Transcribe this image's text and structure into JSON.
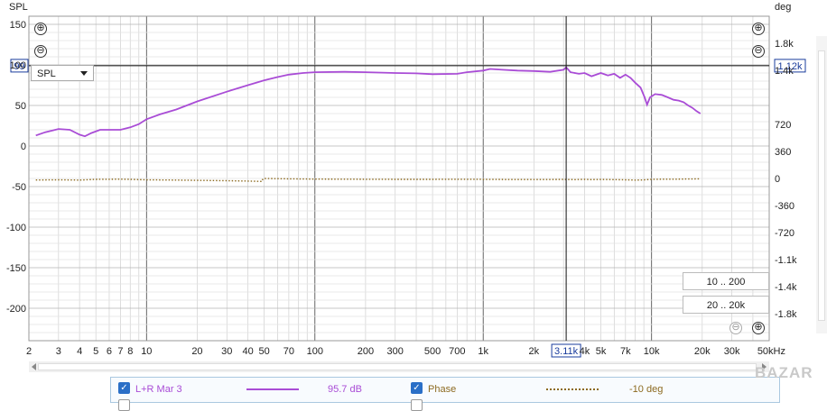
{
  "chart_data": {
    "type": "line",
    "xlabel": "",
    "ylabel": "SPL",
    "y2label": "deg",
    "x_scale": "log",
    "xlim": [
      2,
      50000
    ],
    "ylim": [
      -240,
      160
    ],
    "y2lim": [
      -2160,
      2160
    ],
    "x_ticks": [
      {
        "v": 2,
        "label": "2"
      },
      {
        "v": 3,
        "label": "3"
      },
      {
        "v": 4,
        "label": "4"
      },
      {
        "v": 5,
        "label": "5"
      },
      {
        "v": 6,
        "label": "6"
      },
      {
        "v": 7,
        "label": "7"
      },
      {
        "v": 8,
        "label": "8"
      },
      {
        "v": 10,
        "label": "10"
      },
      {
        "v": 20,
        "label": "20"
      },
      {
        "v": 30,
        "label": "30"
      },
      {
        "v": 40,
        "label": "40"
      },
      {
        "v": 50,
        "label": "50"
      },
      {
        "v": 70,
        "label": "70"
      },
      {
        "v": 100,
        "label": "100"
      },
      {
        "v": 200,
        "label": "200"
      },
      {
        "v": 300,
        "label": "300"
      },
      {
        "v": 500,
        "label": "500"
      },
      {
        "v": 700,
        "label": "700"
      },
      {
        "v": 1000,
        "label": "1k"
      },
      {
        "v": 2000,
        "label": "2k"
      },
      {
        "v": 4000,
        "label": "4k"
      },
      {
        "v": 5000,
        "label": "5k"
      },
      {
        "v": 7000,
        "label": "7k"
      },
      {
        "v": 10000,
        "label": "10k"
      },
      {
        "v": 20000,
        "label": "20k"
      },
      {
        "v": 30000,
        "label": "30k"
      },
      {
        "v": 50000,
        "label": "50kHz"
      }
    ],
    "y_ticks": [
      150,
      100,
      50,
      0,
      -50,
      -100,
      -150,
      -200
    ],
    "y2_ticks": [
      {
        "v": 1800,
        "label": "1.8k"
      },
      {
        "v": 1440,
        "label": "1.4k"
      },
      {
        "v": 720,
        "label": "720"
      },
      {
        "v": 360,
        "label": "360"
      },
      {
        "v": 0,
        "label": "0"
      },
      {
        "v": -360,
        "label": "-360"
      },
      {
        "v": -720,
        "label": "-720"
      },
      {
        "v": -1080,
        "label": "-1.1k"
      },
      {
        "v": -1440,
        "label": "-1.4k"
      },
      {
        "v": -1800,
        "label": "-1.8k"
      }
    ],
    "cursor": {
      "x": 3110,
      "x_label": "3.11k",
      "y": 99,
      "y_label": "99",
      "y2_label": "1.12k"
    },
    "grid": true,
    "series": [
      {
        "name": "L+R Mar 3",
        "axis": "left",
        "color": "#a94cd6",
        "style": "solid",
        "points": [
          [
            2.2,
            13
          ],
          [
            2.5,
            17
          ],
          [
            3,
            21
          ],
          [
            3.5,
            20
          ],
          [
            4,
            14
          ],
          [
            4.3,
            12
          ],
          [
            4.7,
            16
          ],
          [
            5.3,
            20
          ],
          [
            6,
            20
          ],
          [
            7,
            20
          ],
          [
            8,
            23
          ],
          [
            9,
            27
          ],
          [
            10,
            33
          ],
          [
            12,
            39
          ],
          [
            15,
            45
          ],
          [
            20,
            55
          ],
          [
            30,
            67
          ],
          [
            40,
            75
          ],
          [
            50,
            81
          ],
          [
            60,
            85
          ],
          [
            70,
            88
          ],
          [
            85,
            90
          ],
          [
            100,
            91
          ],
          [
            150,
            91.5
          ],
          [
            200,
            91
          ],
          [
            300,
            90
          ],
          [
            400,
            89.5
          ],
          [
            500,
            88.5
          ],
          [
            700,
            89
          ],
          [
            800,
            91
          ],
          [
            1000,
            93
          ],
          [
            1100,
            95
          ],
          [
            1300,
            94
          ],
          [
            1600,
            93
          ],
          [
            2000,
            92.5
          ],
          [
            2500,
            91.5
          ],
          [
            3000,
            94
          ],
          [
            3110,
            97
          ],
          [
            3300,
            91
          ],
          [
            3700,
            89
          ],
          [
            4000,
            90
          ],
          [
            4400,
            86
          ],
          [
            5000,
            90
          ],
          [
            5500,
            87
          ],
          [
            6000,
            89
          ],
          [
            6500,
            84
          ],
          [
            7000,
            88
          ],
          [
            7500,
            84
          ],
          [
            8000,
            78
          ],
          [
            8600,
            72
          ],
          [
            9100,
            60
          ],
          [
            9400,
            51
          ],
          [
            9800,
            60
          ],
          [
            10500,
            64
          ],
          [
            11500,
            63
          ],
          [
            12500,
            60
          ],
          [
            13500,
            57
          ],
          [
            14500,
            56
          ],
          [
            15500,
            54
          ],
          [
            16500,
            50
          ],
          [
            17500,
            47
          ],
          [
            18500,
            43
          ],
          [
            19500,
            40
          ]
        ]
      },
      {
        "name": "Phase",
        "axis": "right",
        "color": "#8c6a20",
        "style": "dotted",
        "value": "-10 deg",
        "points": [
          [
            2.2,
            -20
          ],
          [
            3,
            -18
          ],
          [
            4,
            -22
          ],
          [
            5,
            -12
          ],
          [
            6,
            -11
          ],
          [
            7,
            -10
          ],
          [
            8,
            -12
          ],
          [
            9,
            -15
          ],
          [
            10,
            -18
          ],
          [
            15,
            -22
          ],
          [
            20,
            -25
          ],
          [
            30,
            -30
          ],
          [
            40,
            -35
          ],
          [
            48.5,
            -40
          ],
          [
            49,
            -12
          ],
          [
            50,
            0
          ],
          [
            70,
            -5
          ],
          [
            100,
            -8
          ],
          [
            150,
            -10
          ],
          [
            200,
            -11
          ],
          [
            300,
            -12
          ],
          [
            500,
            -12
          ],
          [
            700,
            -11
          ],
          [
            800,
            -11
          ],
          [
            1000,
            -12
          ],
          [
            1500,
            -14
          ],
          [
            2000,
            -14
          ],
          [
            3000,
            -13
          ],
          [
            3500,
            -15
          ],
          [
            4000,
            -12
          ],
          [
            4400,
            -15
          ],
          [
            5000,
            -13
          ],
          [
            6000,
            -16
          ],
          [
            7000,
            -18
          ],
          [
            8000,
            -22
          ],
          [
            9000,
            -19
          ],
          [
            10000,
            -12
          ],
          [
            12000,
            -10
          ],
          [
            14000,
            -9
          ],
          [
            16000,
            -7
          ],
          [
            18000,
            -6
          ],
          [
            19500,
            -5
          ]
        ]
      }
    ]
  },
  "y_axis": {
    "title": "SPL",
    "cursor_value": "99"
  },
  "y2_axis": {
    "title": "deg",
    "cursor_value": "1.12k"
  },
  "x_axis": {
    "cursor_value": "3.11k"
  },
  "toolbar": {
    "trace_select": "SPL"
  },
  "ranges": {
    "y_range": "10 .. 200",
    "x_range": "20 .. 20k"
  },
  "legend": {
    "items": [
      {
        "name": "L+R Mar 3",
        "value": "95.7 dB",
        "color": "#a94cd6"
      },
      {
        "name": "Phase",
        "value": "-10 deg",
        "color": "#8c6a20"
      }
    ]
  },
  "zoom": {
    "plus": "⊕",
    "minus": "⊖"
  }
}
